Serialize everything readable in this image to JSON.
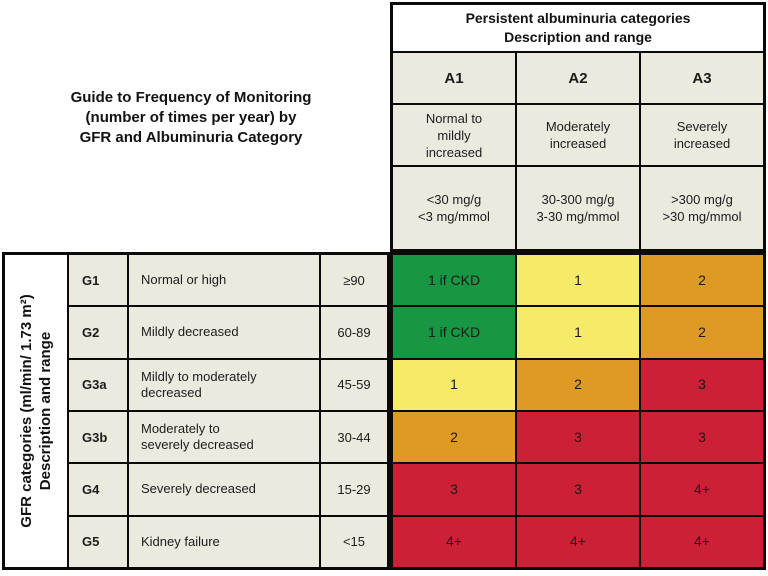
{
  "figure_title": {
    "line1": "Guide to Frequency of Monitoring",
    "line2": "(number of times per year) by",
    "line3": "GFR and Albuminuria Category"
  },
  "albuminuria": {
    "header_title": "Persistent albuminuria categories",
    "header_subtitle": "Description and range",
    "columns": [
      {
        "code": "A1",
        "description": "Normal to\nmildly\nincreased",
        "range": "<30 mg/g\n<3 mg/mmol"
      },
      {
        "code": "A2",
        "description": "Moderately\nincreased",
        "range": "30-300 mg/g\n3-30 mg/mmol"
      },
      {
        "code": "A3",
        "description": "Severely\nincreased",
        "range": ">300 mg/g\n>30 mg/mmol"
      }
    ]
  },
  "gfr": {
    "axis_label_line1": "GFR categories (ml/min/ 1.73 m²)",
    "axis_label_line2": "Description and range",
    "rows": [
      {
        "code": "G1",
        "description": "Normal or high",
        "range": "≥90"
      },
      {
        "code": "G2",
        "description": "Mildly decreased",
        "range": "60-89"
      },
      {
        "code": "G3a",
        "description": "Mildly to moderately\ndecreased",
        "range": "45-59"
      },
      {
        "code": "G3b",
        "description": "Moderately to\nseverely decreased",
        "range": "30-44"
      },
      {
        "code": "G4",
        "description": "Severely decreased",
        "range": "15-29"
      },
      {
        "code": "G5",
        "description": "Kidney failure",
        "range": "<15"
      }
    ]
  },
  "palette": {
    "green": "#179643",
    "yellow": "#f6ea69",
    "orange": "#de9a24",
    "red": "#cb2035",
    "beige": "#ece9df",
    "border": "#0a0a0a"
  },
  "chart_data": {
    "type": "heatmap",
    "title": "Guide to Frequency of Monitoring (number of times per year) by GFR and Albuminuria Category",
    "x_axis_label": "Persistent albuminuria categories — Description and range",
    "y_axis_label": "GFR categories (ml/min/ 1.73 m²) — Description and range",
    "x_categories": [
      "A1",
      "A2",
      "A3"
    ],
    "x_category_descriptions": [
      "Normal to mildly increased",
      "Moderately increased",
      "Severely increased"
    ],
    "x_category_ranges": [
      "<30 mg/g, <3 mg/mmol",
      "30-300 mg/g, 3-30 mg/mmol",
      ">300 mg/g, >30 mg/mmol"
    ],
    "y_categories": [
      "G1",
      "G2",
      "G3a",
      "G3b",
      "G4",
      "G5"
    ],
    "y_category_descriptions": [
      "Normal or high",
      "Mildly decreased",
      "Mildly to moderately decreased",
      "Moderately to severely decreased",
      "Severely decreased",
      "Kidney failure"
    ],
    "y_category_ranges": [
      "≥90",
      "60-89",
      "45-59",
      "30-44",
      "15-29",
      "<15"
    ],
    "values": [
      [
        "1 if CKD",
        "1",
        "2"
      ],
      [
        "1 if CKD",
        "1",
        "2"
      ],
      [
        "1",
        "2",
        "3"
      ],
      [
        "2",
        "3",
        "3"
      ],
      [
        "3",
        "3",
        "4+"
      ],
      [
        "4+",
        "4+",
        "4+"
      ]
    ],
    "cell_colors": [
      [
        "green",
        "yellow",
        "orange"
      ],
      [
        "green",
        "yellow",
        "orange"
      ],
      [
        "yellow",
        "orange",
        "red"
      ],
      [
        "orange",
        "red",
        "red"
      ],
      [
        "red",
        "red",
        "red"
      ],
      [
        "red",
        "red",
        "red"
      ]
    ]
  }
}
